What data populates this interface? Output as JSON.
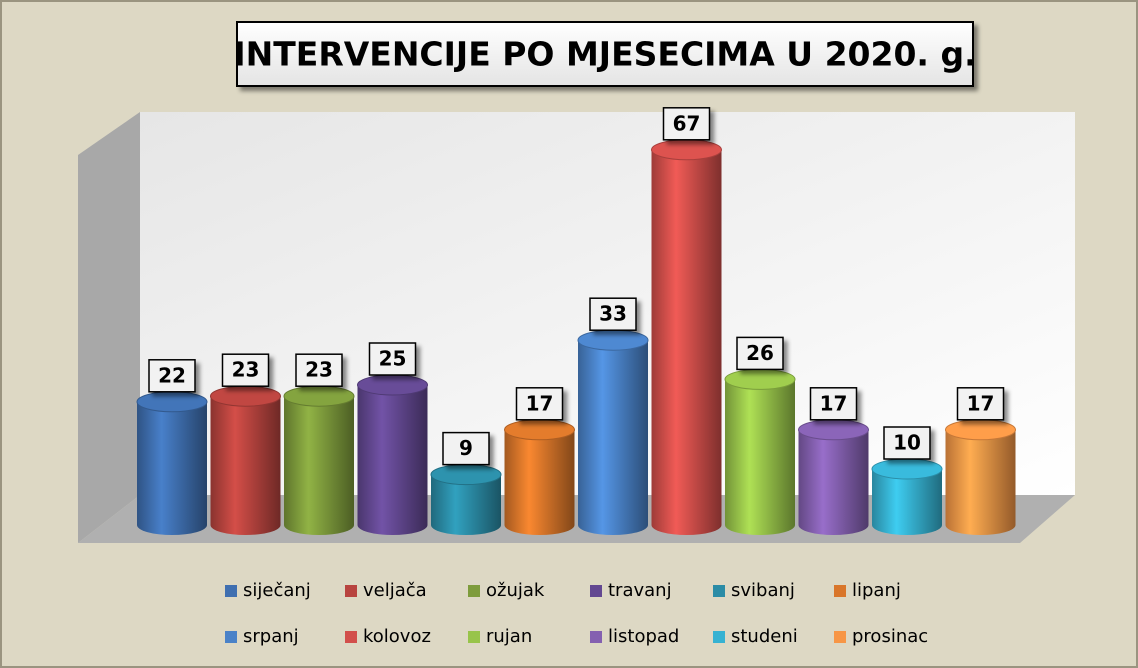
{
  "chart_data": {
    "type": "bar3d",
    "title": "INTERVENCIJE PO MJESECIMA U 2020. g.",
    "categories": [
      "siječanj",
      "veljača",
      "ožujak",
      "travanj",
      "svibanj",
      "lipanj",
      "srpanj",
      "kolovoz",
      "rujan",
      "listopad",
      "studeni",
      "prosinac"
    ],
    "values": [
      22,
      23,
      23,
      25,
      9,
      17,
      33,
      67,
      26,
      17,
      10,
      17
    ],
    "colors": [
      "#3f6fb0",
      "#b8443f",
      "#7e9c3c",
      "#634891",
      "#2b8ca6",
      "#d9762a",
      "#4a82c8",
      "#d24f4b",
      "#98c44a",
      "#8460b0",
      "#36b2d2",
      "#f79646"
    ]
  }
}
